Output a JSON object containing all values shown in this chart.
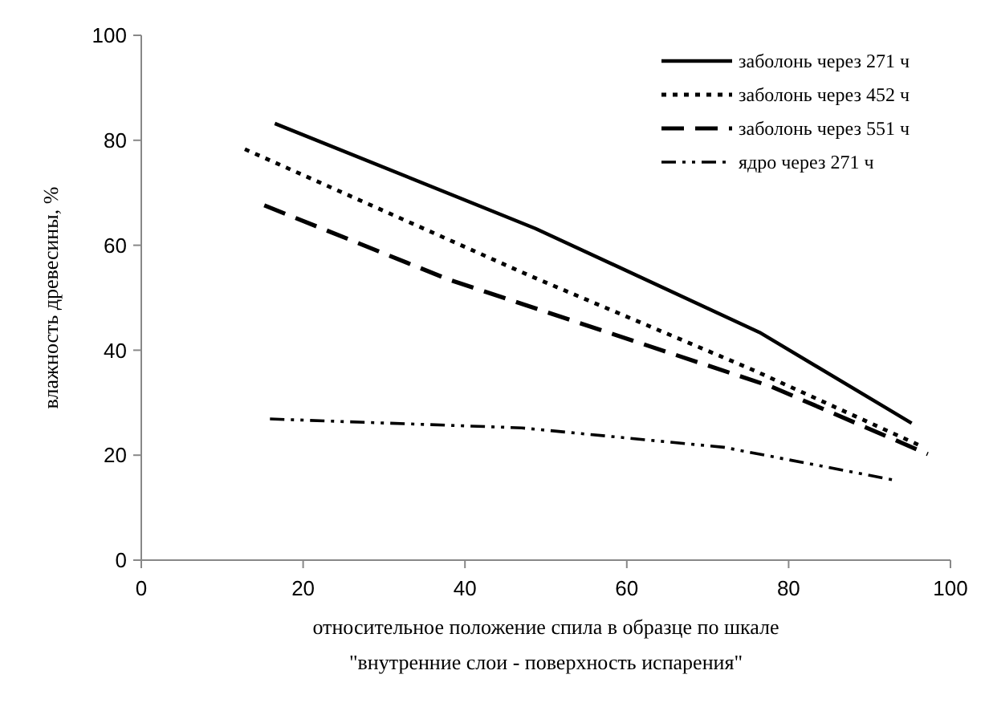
{
  "chart_data": {
    "type": "line",
    "xlabel": "относительное положение спила в образце по шкале\n\"внутренние слои - поверхность испарения\"",
    "ylabel": "влажность древесины, %",
    "xlim": [
      0,
      100
    ],
    "xticks": [
      0,
      20,
      40,
      60,
      80,
      100
    ],
    "ylim": [
      0,
      100
    ],
    "yticks": [
      0,
      20,
      40,
      60,
      80,
      100
    ],
    "grid": false,
    "legend": "top right",
    "marker": "none",
    "series": [
      {
        "name": "заболонь через 271 ч",
        "color": "#000000",
        "line_style": "solid",
        "x": [
          16.5,
          48.7,
          76.4,
          95.2
        ],
        "values": [
          83.2,
          63.2,
          43.4,
          26.1
        ]
      },
      {
        "name": "заболонь через 452 ч",
        "color": "#000000",
        "line_style": "dotted",
        "x": [
          12.8,
          48,
          75.5,
          96
        ],
        "values": [
          78.3,
          54.2,
          36.3,
          22
        ]
      },
      {
        "name": "заболонь через 551 ч",
        "color": "#000000",
        "line_style": "dashed",
        "x": [
          15.2,
          38.1,
          77.8,
          97.2
        ],
        "values": [
          67.6,
          53.4,
          33.1,
          20.2
        ]
      },
      {
        "name": "ядро через 271 ч",
        "color": "#000000",
        "line_style": "dashdot",
        "x": [
          15.9,
          47,
          72,
          93.2
        ],
        "values": [
          26.9,
          25.2,
          21.5,
          15.2
        ]
      }
    ]
  }
}
